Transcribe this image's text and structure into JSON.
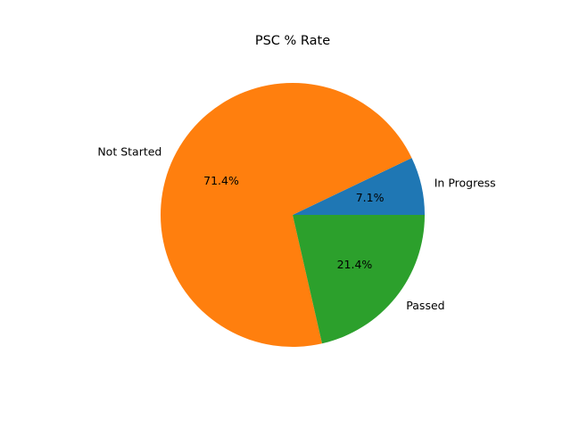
{
  "chart_data": {
    "type": "pie",
    "title": "PSC % Rate",
    "slices": [
      {
        "label": "In Progress",
        "value": 7.1,
        "pct_label": "7.1%",
        "color": "#1f77b4"
      },
      {
        "label": "Not Started",
        "value": 71.4,
        "pct_label": "71.4%",
        "color": "#ff7f0e"
      },
      {
        "label": "Passed",
        "value": 21.4,
        "pct_label": "21.4%",
        "color": "#2ca02c"
      }
    ],
    "start_angle_deg": 0,
    "direction": "counterclockwise",
    "legend": "none"
  }
}
